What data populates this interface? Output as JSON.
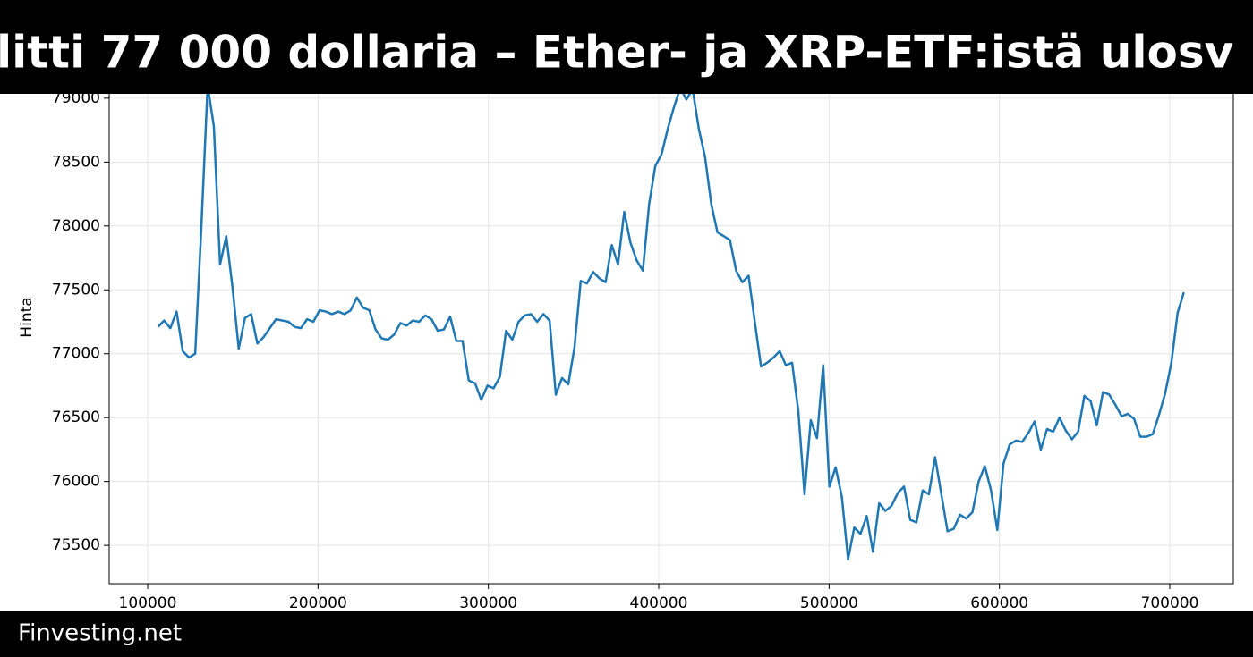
{
  "chart_data": {
    "type": "line",
    "title": "litti 77 000 dollaria – Ether- ja XRP-ETF:istä ulosv",
    "y_label": "Hinta",
    "source": "Finvesting.net",
    "xlim": [
      77400,
      737300
    ],
    "ylim": [
      75200,
      79300
    ],
    "xticks": [
      100000,
      200000,
      300000,
      400000,
      500000,
      600000,
      700000
    ],
    "yticks": [
      75500,
      76000,
      76500,
      77000,
      77500,
      78000,
      78500,
      79000
    ],
    "grid": true,
    "series": [
      {
        "color": "#1f77b4",
        "x": [
          106000,
          109650,
          113300,
          116950,
          120600,
          124250,
          127900,
          131550,
          135200,
          138850,
          142500,
          146150,
          149800,
          153450,
          157100,
          160750,
          164400,
          168050,
          171700,
          175350,
          179000,
          182650,
          186300,
          189950,
          193600,
          197250,
          200900,
          204550,
          208200,
          211850,
          215500,
          219150,
          222800,
          226450,
          230100,
          233750,
          237400,
          241050,
          244700,
          248350,
          252000,
          255650,
          259300,
          262950,
          266600,
          270250,
          273900,
          277550,
          281200,
          284850,
          288500,
          292150,
          295800,
          299450,
          303100,
          306750,
          310400,
          314050,
          317700,
          321350,
          325000,
          328650,
          332300,
          335950,
          339600,
          343250,
          346900,
          350550,
          354200,
          357850,
          361500,
          365150,
          368800,
          372450,
          376100,
          379750,
          383400,
          387050,
          390700,
          394350,
          398000,
          401650,
          405300,
          408950,
          412600,
          416250,
          419900,
          423550,
          427200,
          430850,
          434500,
          438150,
          441800,
          445450,
          449100,
          452750,
          456400,
          460050,
          463700,
          467350,
          471000,
          474650,
          478300,
          481950,
          485600,
          489250,
          492900,
          496550,
          500200,
          503850,
          507500,
          511150,
          514800,
          518450,
          522100,
          525750,
          529400,
          533050,
          536700,
          540350,
          544000,
          547650,
          551300,
          554950,
          558600,
          562250,
          565900,
          569550,
          573200,
          576850,
          580500,
          584150,
          587800,
          591450,
          595100,
          598750,
          602400,
          606050,
          609700,
          613350,
          617000,
          620650,
          624300,
          627950,
          631600,
          635250,
          638900,
          642550,
          646200,
          649850,
          653500,
          657150,
          660800,
          664450,
          668100,
          671750,
          675400,
          679050,
          682700,
          686350,
          690000,
          693650,
          697300,
          700950,
          704600,
          708250
        ],
        "values": [
          77210,
          77260,
          77200,
          77330,
          77020,
          76970,
          77000,
          78000,
          79100,
          78780,
          77700,
          77920,
          77520,
          77040,
          77280,
          77310,
          77080,
          77130,
          77200,
          77270,
          77260,
          77250,
          77210,
          77200,
          77270,
          77250,
          77340,
          77330,
          77310,
          77330,
          77310,
          77340,
          77440,
          77360,
          77340,
          77190,
          77120,
          77110,
          77150,
          77240,
          77220,
          77260,
          77250,
          77300,
          77270,
          77180,
          77190,
          77290,
          77100,
          77100,
          76790,
          76770,
          76640,
          76750,
          76730,
          76820,
          77180,
          77110,
          77250,
          77300,
          77310,
          77250,
          77310,
          77260,
          76680,
          76810,
          76760,
          77050,
          77570,
          77550,
          77640,
          77590,
          77560,
          77850,
          77700,
          78110,
          77870,
          77730,
          77650,
          78170,
          78470,
          78560,
          78760,
          78930,
          79080,
          78990,
          79070,
          78760,
          78540,
          78170,
          77950,
          77920,
          77890,
          77650,
          77560,
          77610,
          77250,
          76900,
          76930,
          76970,
          77020,
          76910,
          76930,
          76550,
          75900,
          76480,
          76340,
          76910,
          75960,
          76110,
          75880,
          75390,
          75640,
          75590,
          75730,
          75450,
          75830,
          75770,
          75810,
          75910,
          75960,
          75700,
          75680,
          75930,
          75900,
          76190,
          75900,
          75610,
          75630,
          75740,
          75710,
          75760,
          76000,
          76120,
          75930,
          75620,
          76140,
          76290,
          76320,
          76310,
          76380,
          76470,
          76250,
          76410,
          76390,
          76500,
          76400,
          76330,
          76390,
          76670,
          76630,
          76440,
          76700,
          76680,
          76600,
          76510,
          76530,
          76490,
          76350,
          76350,
          76370,
          76520,
          76690,
          76930,
          77320,
          77480
        ]
      }
    ]
  }
}
